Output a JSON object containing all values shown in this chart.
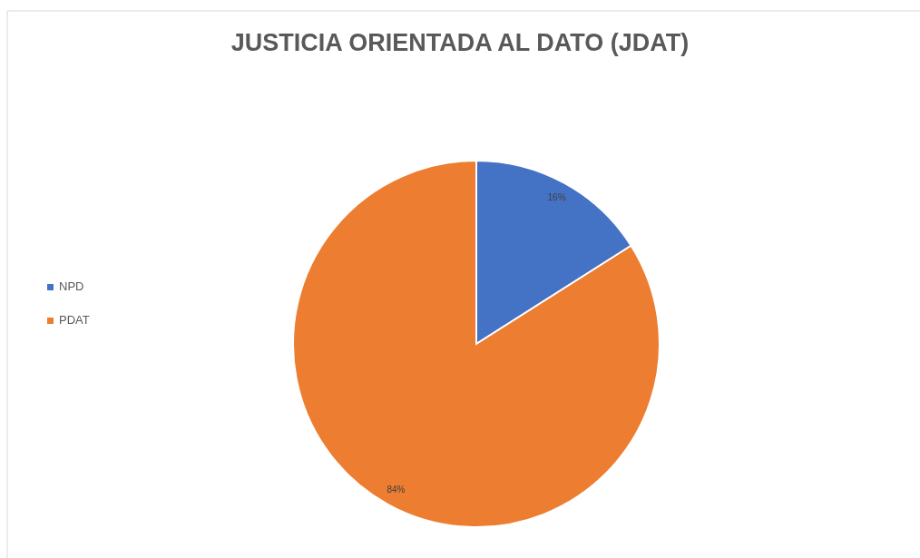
{
  "chart_data": {
    "type": "pie",
    "title": "JUSTICIA ORIENTADA AL DATO (JDAT)",
    "categories": [
      "NPD",
      "PDAT"
    ],
    "values": [
      16,
      84
    ],
    "colors": [
      "#4472c4",
      "#ed7d31"
    ],
    "value_labels": [
      "16%",
      "84%"
    ],
    "legend": "left"
  }
}
